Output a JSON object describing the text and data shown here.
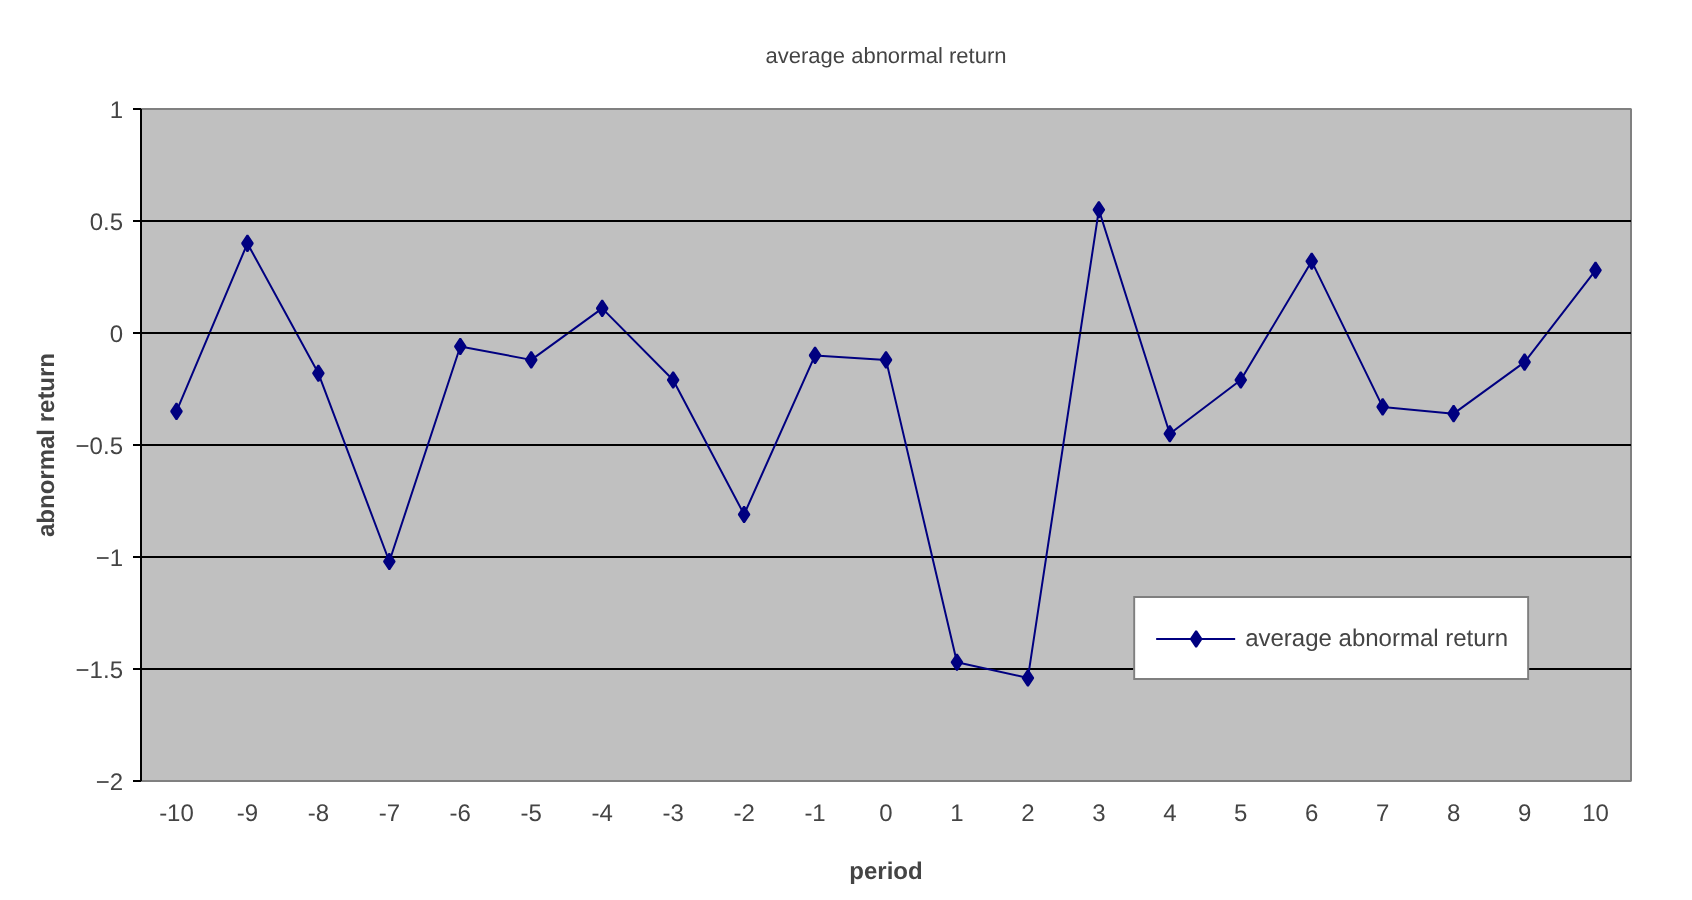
{
  "chart_data": {
    "type": "line",
    "title": "average abnormal return",
    "xlabel": "period",
    "ylabel": "abnormal return",
    "categories": [
      "-10",
      "-9",
      "-8",
      "-7",
      "-6",
      "-5",
      "-4",
      "-3",
      "-2",
      "-1",
      "0",
      "1",
      "2",
      "3",
      "4",
      "5",
      "6",
      "7",
      "8",
      "9",
      "10"
    ],
    "series": [
      {
        "name": "average abnormal return",
        "color": "#000080",
        "values": [
          -0.35,
          0.4,
          -0.18,
          -1.02,
          -0.06,
          -0.12,
          0.11,
          -0.21,
          -0.81,
          -0.1,
          -0.12,
          -1.47,
          -1.54,
          0.55,
          -0.45,
          -0.21,
          0.32,
          -0.33,
          -0.36,
          -0.13,
          0.28
        ]
      }
    ],
    "ylim": [
      -2,
      1
    ],
    "yticks": [
      -2,
      -1.5,
      -1,
      -0.5,
      0,
      0.5,
      1
    ],
    "grid": "y",
    "legend": "bottom_right",
    "marker": "diamond",
    "line_style": "solid"
  }
}
